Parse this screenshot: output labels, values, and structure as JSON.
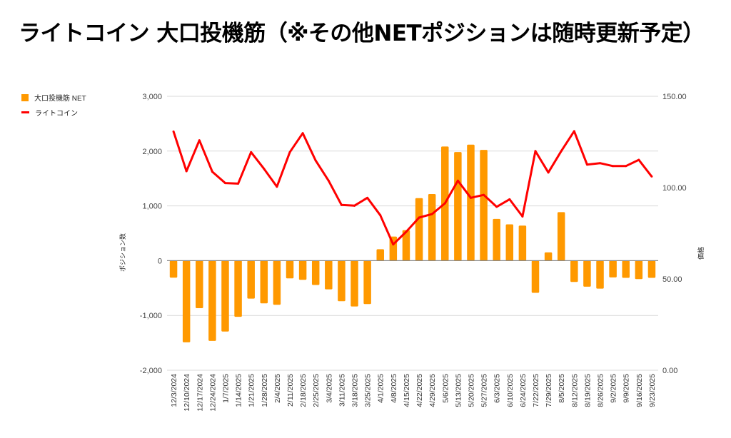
{
  "title": "ライトコイン 大口投機筋（※その他NETポジションは随時更新予定）",
  "colors": {
    "bar": "#FF9900",
    "line": "#FF0000",
    "grid": "#D9D9D9",
    "zero": "#888888"
  },
  "chart_data": {
    "type": "bar+line",
    "title": "ライトコイン 大口投機筋（※その他NETポジションは随時更新予定）",
    "legend_position": "top-left",
    "ylabel_left": "ポジション数",
    "ylabel_right": "価格",
    "ylim_left": [
      -2000,
      3000
    ],
    "ylim_right": [
      0,
      150
    ],
    "yticks_left": [
      "3,000",
      "2,000",
      "1,000",
      "0",
      "-1,000",
      "-2,000"
    ],
    "yticks_left_values": [
      3000,
      2000,
      1000,
      0,
      -1000,
      -2000
    ],
    "yticks_right": [
      "150.00",
      "100.00",
      "50.00",
      "0.00"
    ],
    "yticks_right_values": [
      150,
      100,
      50,
      0
    ],
    "grid": true,
    "categories": [
      "12/3/2024",
      "12/10/2024",
      "12/17/2024",
      "12/24/2024",
      "1/7/2025",
      "1/14/2025",
      "1/21/2025",
      "1/28/2025",
      "2/4/2025",
      "2/11/2025",
      "2/18/2025",
      "2/25/2025",
      "3/4/2025",
      "3/11/2025",
      "3/18/2025",
      "3/25/2025",
      "4/1/2025",
      "4/8/2025",
      "4/15/2025",
      "4/22/2025",
      "4/29/2025",
      "5/6/2025",
      "5/13/2025",
      "5/20/2025",
      "5/27/2025",
      "6/3/2025",
      "6/10/2025",
      "6/24/2025",
      "7/22/2025",
      "7/29/2025",
      "8/5/2025",
      "8/12/2025",
      "8/19/2025",
      "8/26/2025",
      "9/2/2025",
      "9/9/2025",
      "9/16/2025",
      "9/23/2025"
    ],
    "series": [
      {
        "name": "大口投機筋  NET",
        "type": "bar",
        "axis": "left",
        "values": [
          -310,
          -1490,
          -867,
          -1464,
          -1294,
          -1025,
          -693,
          -780,
          -806,
          -323,
          -349,
          -444,
          -523,
          -741,
          -837,
          -793,
          209,
          440,
          557,
          1141,
          1216,
          2083,
          1983,
          2118,
          2022,
          762,
          662,
          640,
          -588,
          152,
          885,
          -388,
          -475,
          -510,
          -305,
          -314,
          -336,
          -314
        ]
      },
      {
        "name": "ライトコイン",
        "type": "line",
        "axis": "right",
        "values": [
          130.7,
          109.0,
          125.9,
          108.7,
          102.5,
          102.2,
          119.4,
          110.3,
          100.5,
          119.4,
          129.8,
          114.8,
          103.8,
          90.5,
          90.1,
          94.4,
          84.9,
          68.9,
          75.8,
          83.6,
          85.5,
          91.4,
          103.8,
          94.4,
          96.0,
          89.5,
          93.6,
          84.2,
          120.0,
          108.3,
          120.0,
          130.9,
          112.6,
          113.4,
          111.8,
          111.8,
          115.2,
          106.1
        ]
      }
    ]
  }
}
